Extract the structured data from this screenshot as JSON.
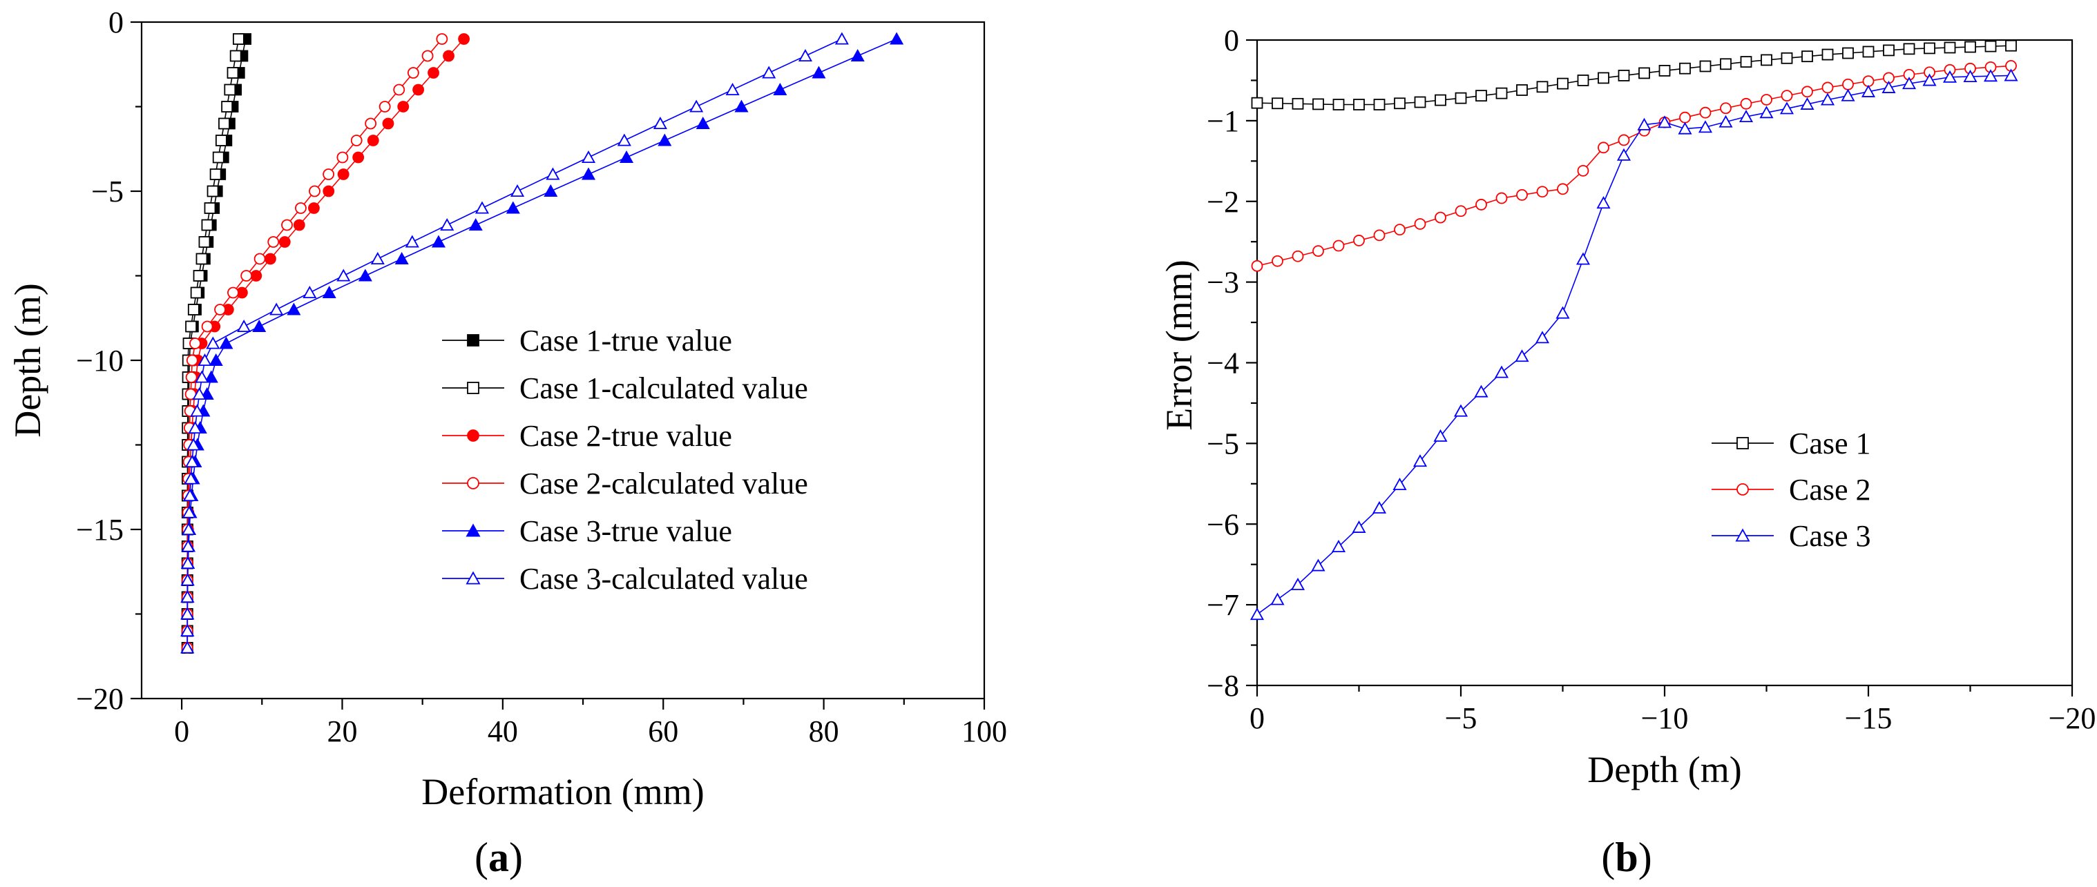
{
  "chart_data": [
    {
      "panel": "a",
      "type": "line",
      "xlabel": "Deformation (mm)",
      "ylabel": "Depth (m)",
      "xlim": [
        -5,
        100
      ],
      "ylim": [
        -20,
        0
      ],
      "xticks": [
        0,
        20,
        40,
        60,
        80,
        100
      ],
      "yticks": [
        0,
        -5,
        -10,
        -15,
        -20
      ],
      "xtick_labels": [
        "0",
        "20",
        "40",
        "60",
        "80",
        "100"
      ],
      "ytick_labels": [
        "0",
        "−5",
        "−10",
        "−15",
        "−20"
      ],
      "depth_range": [
        -18.5,
        -0.2
      ],
      "profile_param": {
        "knee_depth": -9.6,
        "base_value": 0.7
      },
      "series": [
        {
          "name": "Case 1-true value",
          "color": "#000000",
          "marker": "square",
          "filled": true,
          "top_value": 8.2,
          "knee_value": 1.0
        },
        {
          "name": "Case 1-calculated value",
          "color": "#000000",
          "marker": "square",
          "filled": false,
          "top_value": 7.3,
          "knee_value": 0.8
        },
        {
          "name": "Case 2-true value",
          "color": "#ff0000",
          "marker": "circle",
          "filled": true,
          "top_value": 36.3,
          "knee_value": 2.2
        },
        {
          "name": "Case 2-calculated value",
          "color": "#ff0000",
          "marker": "circle",
          "filled": false,
          "top_value": 33.5,
          "knee_value": 1.4
        },
        {
          "name": "Case 3-true value",
          "color": "#0000ff",
          "marker": "triangle",
          "filled": true,
          "top_value": 92.0,
          "knee_value": 4.8
        },
        {
          "name": "Case 3-calculated value",
          "color": "#0000ff",
          "marker": "triangle",
          "filled": false,
          "top_value": 85.0,
          "knee_value": 3.2
        }
      ],
      "legend_position": "center-right",
      "panel_label": "a"
    },
    {
      "panel": "b",
      "type": "line",
      "xlabel": "Depth (m)",
      "ylabel": "Error (mm)",
      "xlim": [
        0,
        -20
      ],
      "ylim": [
        -8,
        0
      ],
      "xticks": [
        0,
        -5,
        -10,
        -15,
        -20
      ],
      "yticks": [
        0,
        -1,
        -2,
        -3,
        -4,
        -5,
        -6,
        -7,
        -8
      ],
      "xtick_labels": [
        "0",
        "−5",
        "−10",
        "−15",
        "−20"
      ],
      "ytick_labels": [
        "0",
        "−1",
        "−2",
        "−3",
        "−4",
        "−5",
        "−6",
        "−7",
        "−8"
      ],
      "series": [
        {
          "name": "Case 1",
          "color": "#000000",
          "marker": "square",
          "filled": false,
          "x": [
            0,
            -2,
            -3,
            -4,
            -5,
            -6,
            -8,
            -10,
            -12,
            -14,
            -16,
            -18.5
          ],
          "y": [
            -0.78,
            -0.8,
            -0.8,
            -0.77,
            -0.72,
            -0.66,
            -0.5,
            -0.38,
            -0.27,
            -0.18,
            -0.11,
            -0.07
          ]
        },
        {
          "name": "Case 2",
          "color": "#ff0000",
          "marker": "circle",
          "filled": false,
          "x": [
            0,
            -1,
            -2,
            -3,
            -4,
            -5,
            -6,
            -7,
            -7.6,
            -8.0,
            -8.3,
            -8.6,
            -9.0,
            -9.6,
            -10,
            -11,
            -12,
            -13,
            -14,
            -15,
            -16,
            -17,
            -18.5
          ],
          "y": [
            -2.8,
            -2.68,
            -2.55,
            -2.42,
            -2.28,
            -2.12,
            -1.96,
            -1.88,
            -1.84,
            -1.62,
            -1.48,
            -1.26,
            -1.24,
            -1.1,
            -1.02,
            -0.9,
            -0.79,
            -0.69,
            -0.59,
            -0.51,
            -0.43,
            -0.37,
            -0.32
          ]
        },
        {
          "name": "Case 3",
          "color": "#0000ff",
          "marker": "triangle",
          "filled": false,
          "x": [
            0,
            -1,
            -2,
            -3,
            -4,
            -5,
            -6,
            -6.8,
            -7.2,
            -7.6,
            -7.9,
            -8.2,
            -8.5,
            -8.8,
            -9.1,
            -9.4,
            -9.8,
            -10,
            -10.5,
            -11,
            -12,
            -13,
            -14,
            -15,
            -16,
            -17,
            -18.5
          ],
          "y": [
            -7.12,
            -6.75,
            -6.28,
            -5.8,
            -5.22,
            -4.6,
            -4.12,
            -3.8,
            -3.58,
            -3.32,
            -2.95,
            -2.25,
            -2.02,
            -1.58,
            -1.35,
            -1.12,
            -0.84,
            -1.02,
            -1.1,
            -1.08,
            -0.95,
            -0.85,
            -0.74,
            -0.64,
            -0.54,
            -0.46,
            -0.44
          ]
        }
      ],
      "legend_position": "center-right",
      "panel_label": "b"
    }
  ]
}
